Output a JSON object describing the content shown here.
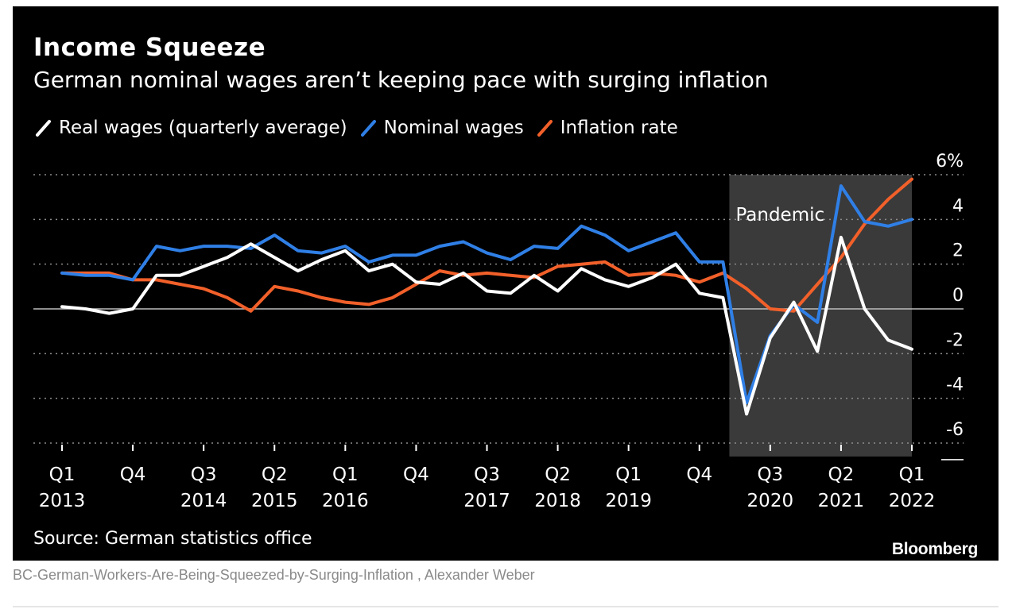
{
  "header": {
    "title": "Income Squeeze",
    "subtitle": "German nominal wages aren’t keeping pace with surging inflation"
  },
  "legend": [
    {
      "label": "Real wages (quarterly average)",
      "color": "#ffffff"
    },
    {
      "label": "Nominal wages",
      "color": "#2f7fe6"
    },
    {
      "label": "Inflation rate",
      "color": "#f2602a"
    }
  ],
  "footer": {
    "source": "Source: German statistics office",
    "brand": "Bloomberg",
    "caption": "BC-German-Workers-Are-Being-Squeezed-by-Surging-Inflation , Alexander Weber"
  },
  "chart_data": {
    "type": "line",
    "x": [
      "2013-Q1",
      "2013-Q2",
      "2013-Q3",
      "2013-Q4",
      "2014-Q1",
      "2014-Q2",
      "2014-Q3",
      "2014-Q4",
      "2015-Q1",
      "2015-Q2",
      "2015-Q3",
      "2015-Q4",
      "2016-Q1",
      "2016-Q2",
      "2016-Q3",
      "2016-Q4",
      "2017-Q1",
      "2017-Q2",
      "2017-Q3",
      "2017-Q4",
      "2018-Q1",
      "2018-Q2",
      "2018-Q3",
      "2018-Q4",
      "2019-Q1",
      "2019-Q2",
      "2019-Q3",
      "2019-Q4",
      "2020-Q1",
      "2020-Q2",
      "2020-Q3",
      "2020-Q4",
      "2021-Q1",
      "2021-Q2",
      "2021-Q3",
      "2021-Q4",
      "2022-Q1"
    ],
    "series": [
      {
        "name": "Real wages (quarterly average)",
        "color": "#ffffff",
        "values": [
          0.1,
          0.0,
          -0.2,
          0.0,
          1.5,
          1.5,
          1.9,
          2.3,
          2.9,
          2.3,
          1.7,
          2.2,
          2.6,
          1.7,
          2.0,
          1.2,
          1.1,
          1.6,
          0.8,
          0.7,
          1.5,
          0.8,
          1.8,
          1.3,
          1.0,
          1.4,
          2.0,
          0.7,
          0.5,
          -4.7,
          -1.3,
          0.3,
          -1.9,
          3.2,
          0.0,
          -1.4,
          -1.8
        ]
      },
      {
        "name": "Nominal wages",
        "color": "#2f7fe6",
        "values": [
          1.6,
          1.5,
          1.5,
          1.3,
          2.8,
          2.6,
          2.8,
          2.8,
          2.7,
          3.3,
          2.6,
          2.5,
          2.8,
          2.1,
          2.4,
          2.4,
          2.8,
          3.0,
          2.5,
          2.2,
          2.8,
          2.7,
          3.7,
          3.3,
          2.6,
          3.0,
          3.4,
          2.1,
          2.1,
          -4.2,
          -1.2,
          0.2,
          -0.6,
          5.5,
          3.9,
          3.7,
          4.0
        ]
      },
      {
        "name": "Inflation rate",
        "color": "#f2602a",
        "values": [
          1.6,
          1.6,
          1.6,
          1.3,
          1.3,
          1.1,
          0.9,
          0.5,
          -0.1,
          1.0,
          0.8,
          0.5,
          0.3,
          0.2,
          0.5,
          1.1,
          1.7,
          1.5,
          1.6,
          1.5,
          1.4,
          1.9,
          2.0,
          2.1,
          1.5,
          1.6,
          1.5,
          1.2,
          1.6,
          0.9,
          0.0,
          -0.1,
          1.1,
          2.3,
          3.8,
          4.9,
          5.8
        ]
      }
    ],
    "x_ticks": [
      {
        "quarter": "Q1",
        "year": "2013",
        "index": 0
      },
      {
        "quarter": "Q4",
        "year": "",
        "index": 3
      },
      {
        "quarter": "Q3",
        "year": "2014",
        "index": 6
      },
      {
        "quarter": "Q2",
        "year": "2015",
        "index": 9
      },
      {
        "quarter": "Q1",
        "year": "2016",
        "index": 12
      },
      {
        "quarter": "Q4",
        "year": "",
        "index": 15
      },
      {
        "quarter": "Q3",
        "year": "2017",
        "index": 18
      },
      {
        "quarter": "Q2",
        "year": "2018",
        "index": 21
      },
      {
        "quarter": "Q1",
        "year": "2019",
        "index": 24
      },
      {
        "quarter": "Q4",
        "year": "",
        "index": 27
      },
      {
        "quarter": "Q3",
        "year": "2020",
        "index": 30
      },
      {
        "quarter": "Q2",
        "year": "2021",
        "index": 33
      },
      {
        "quarter": "Q1",
        "year": "2022",
        "index": 36
      }
    ],
    "y_ticks": [
      "6%",
      "4",
      "2",
      "0",
      "-2",
      "-4",
      "-6"
    ],
    "y_tick_values": [
      6,
      4,
      2,
      0,
      -2,
      -4,
      -6
    ],
    "ylim": [
      -6.6,
      6
    ],
    "grid": true,
    "y_axis_side": "right",
    "annotations": [
      {
        "text": "Pandemic",
        "from_index": 28,
        "to_index": 36
      }
    ]
  }
}
